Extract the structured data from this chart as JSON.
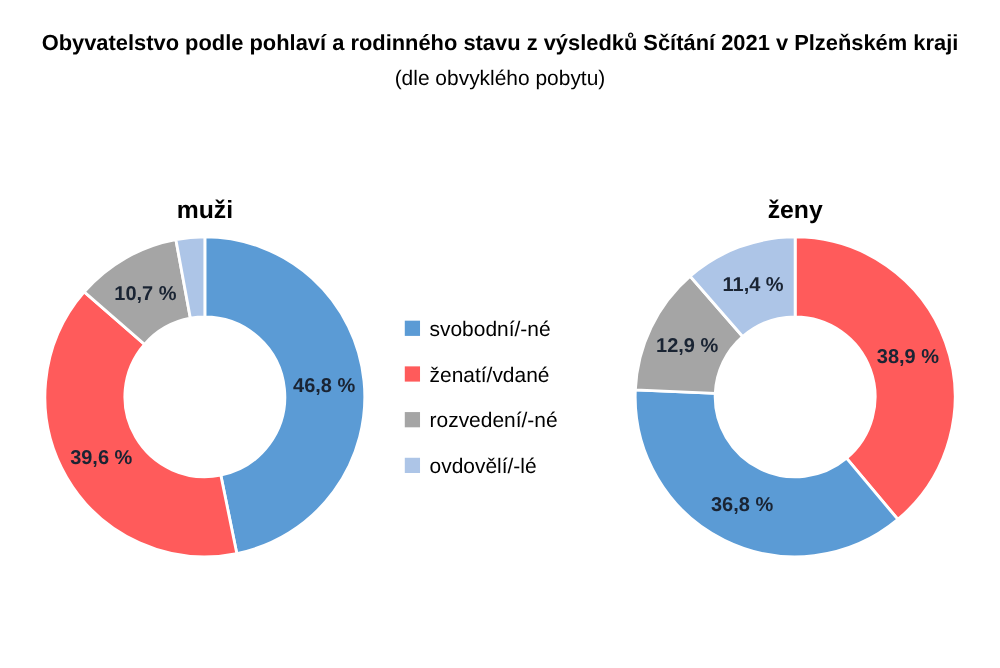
{
  "chart_data": [
    {
      "type": "donut",
      "title": "Obyvatelstvo podle pohlaví a rodinného stavu z výsledků Sčítání 2021 v Plzeňském kraji",
      "subtitle": "(dle obvyklého pobytu)",
      "annotations": [
        "muži"
      ],
      "legend": "right",
      "categories": [
        "svobodní/-né",
        "ženatí/vdané",
        "rozvedení/-né",
        "ovdovělí/-lé"
      ],
      "values": [
        46.8,
        39.6,
        10.7,
        2.9
      ],
      "colors": [
        "#5b9bd5",
        "#ff5b5b",
        "#a5a5a5",
        "#adc5e7"
      ],
      "value_labels": [
        "46,8 %",
        "39,6 %",
        "10,7 %",
        null
      ]
    },
    {
      "type": "donut",
      "annotations": [
        "ženy"
      ],
      "categories": [
        null,
        null,
        null,
        null
      ],
      "values": [
        38.9,
        36.8,
        12.9,
        11.4
      ],
      "colors": [
        "#ff5b5b",
        "#5b9bd5",
        "#a5a5a5",
        "#adc5e7"
      ],
      "value_labels": [
        "38,9 %",
        "36,8 %",
        "12,9 %",
        "11,4 %"
      ]
    }
  ]
}
